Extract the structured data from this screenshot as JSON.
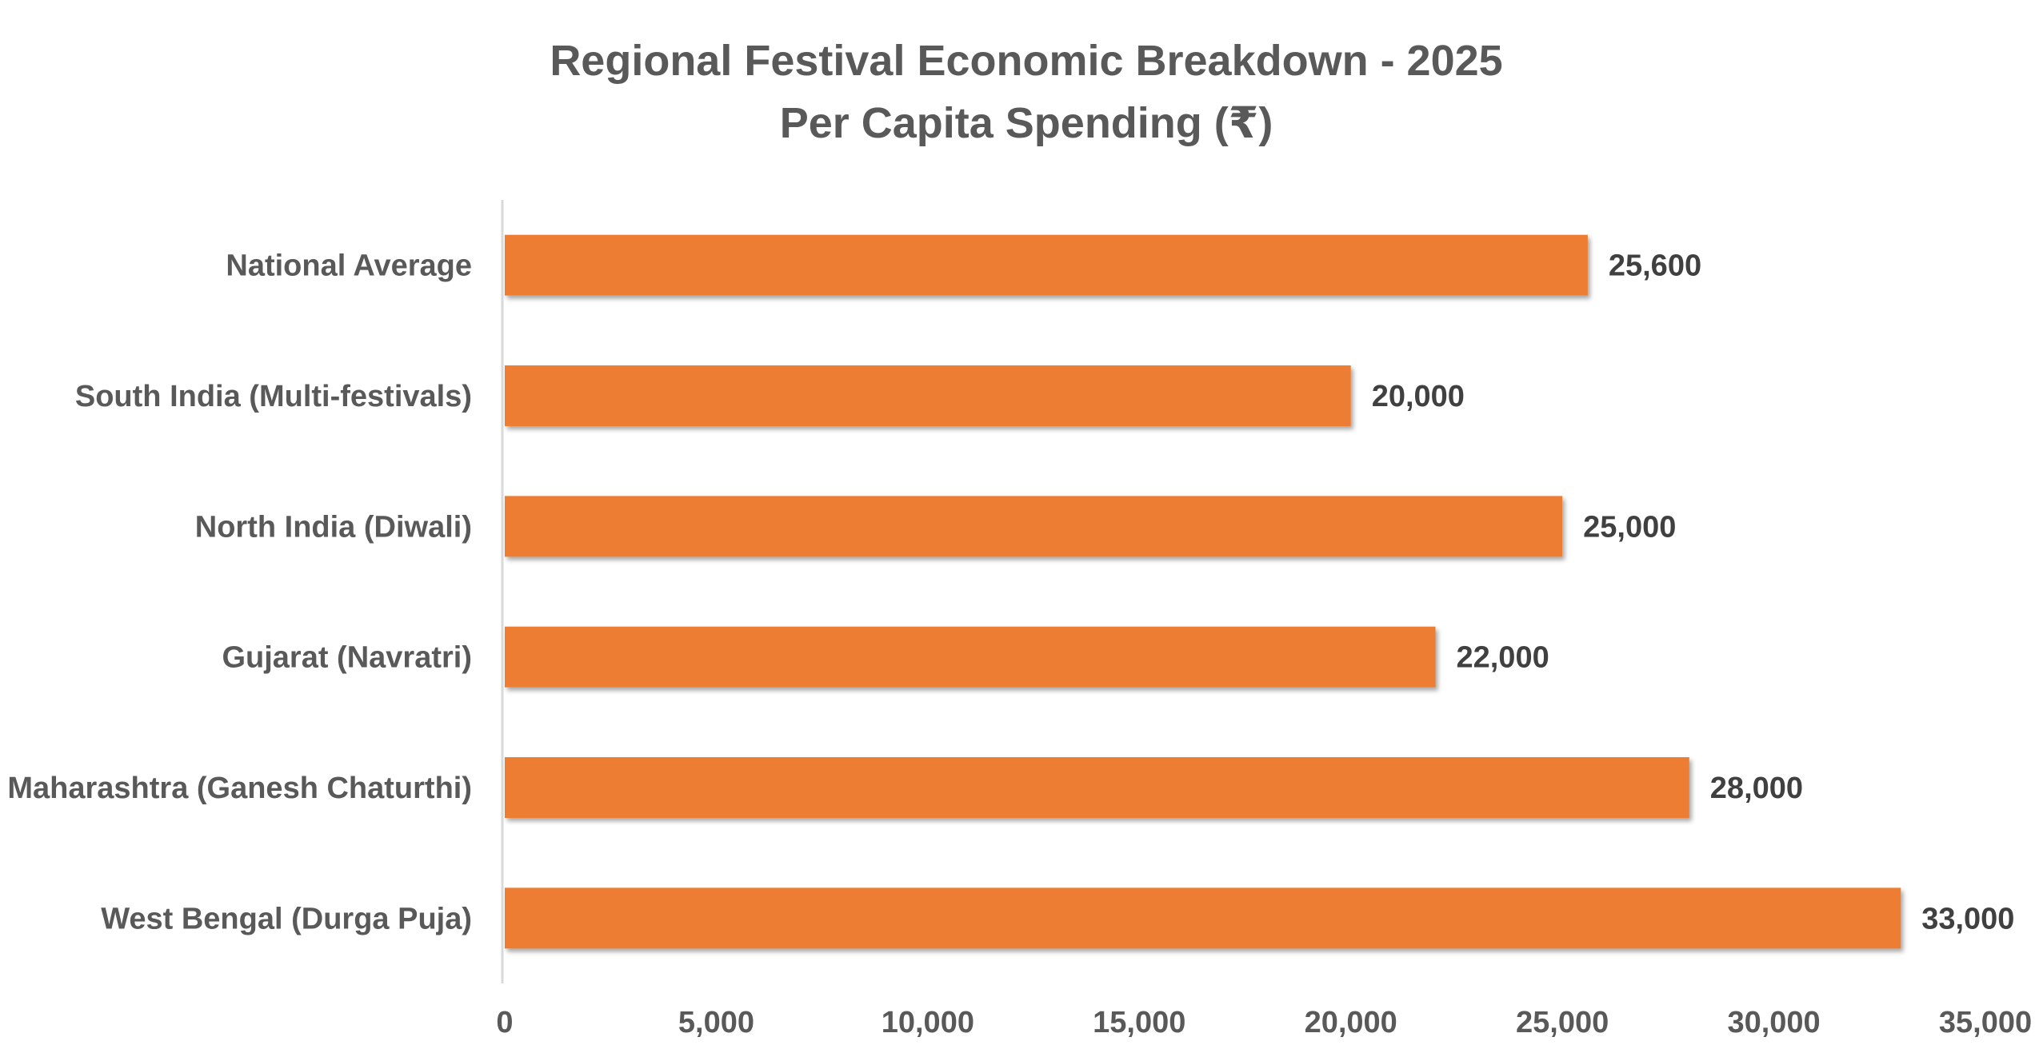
{
  "chart_data": {
    "type": "bar",
    "orientation": "horizontal",
    "title": "Regional Festival Economic Breakdown - 2025",
    "subtitle": "Per Capita Spending (₹)",
    "xlabel": "",
    "ylabel": "",
    "categories": [
      "National Average",
      "South India (Multi-festivals)",
      "North India (Diwali)",
      "Gujarat (Navratri)",
      "Maharashtra (Ganesh Chaturthi)",
      "West Bengal (Durga Puja)"
    ],
    "values": [
      25600,
      20000,
      25000,
      22000,
      28000,
      33000
    ],
    "value_labels": [
      "25,600",
      "20,000",
      "25,000",
      "22,000",
      "28,000",
      "33,000"
    ],
    "xlim": [
      0,
      35000
    ],
    "x_ticks": [
      0,
      5000,
      10000,
      15000,
      20000,
      25000,
      30000,
      35000
    ],
    "x_tick_labels": [
      "0",
      "5,000",
      "10,000",
      "15,000",
      "20,000",
      "25,000",
      "30,000",
      "35,000"
    ],
    "grid": false,
    "legend": "none",
    "bar_color": "#ED7D31"
  }
}
